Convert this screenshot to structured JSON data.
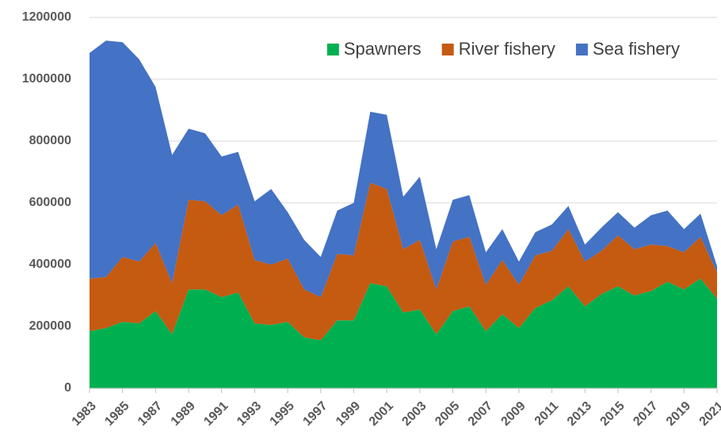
{
  "chart_data": {
    "type": "stacked-area",
    "x": [
      1983,
      1984,
      1985,
      1986,
      1987,
      1988,
      1989,
      1990,
      1991,
      1992,
      1993,
      1994,
      1995,
      1996,
      1997,
      1998,
      1999,
      2000,
      2001,
      2002,
      2003,
      2004,
      2005,
      2006,
      2007,
      2008,
      2009,
      2010,
      2011,
      2012,
      2013,
      2014,
      2015,
      2016,
      2017,
      2018,
      2019,
      2020,
      2021
    ],
    "xlim": [
      1983,
      2021
    ],
    "xticks": [
      1983,
      1985,
      1987,
      1989,
      1991,
      1993,
      1995,
      1997,
      1999,
      2001,
      2003,
      2005,
      2007,
      2009,
      2011,
      2013,
      2015,
      2017,
      2019,
      2021
    ],
    "ylim": [
      0,
      1200000
    ],
    "yticks": [
      0,
      200000,
      400000,
      600000,
      800000,
      1000000,
      1200000
    ],
    "grid": true,
    "legend": "top-right",
    "series": [
      {
        "name": "Spawners",
        "color": "#00b050",
        "values": [
          185000,
          195000,
          215000,
          210000,
          250000,
          175000,
          320000,
          320000,
          295000,
          310000,
          210000,
          205000,
          215000,
          165000,
          155000,
          220000,
          220000,
          340000,
          330000,
          245000,
          255000,
          175000,
          250000,
          265000,
          185000,
          240000,
          195000,
          260000,
          285000,
          330000,
          265000,
          305000,
          330000,
          300000,
          315000,
          345000,
          320000,
          355000,
          290000
        ]
      },
      {
        "name": "River fishery",
        "color": "#c55a11",
        "values": [
          170000,
          165000,
          210000,
          200000,
          220000,
          165000,
          290000,
          285000,
          265000,
          285000,
          205000,
          195000,
          205000,
          155000,
          140000,
          215000,
          210000,
          325000,
          315000,
          205000,
          225000,
          145000,
          225000,
          225000,
          150000,
          175000,
          140000,
          170000,
          160000,
          185000,
          145000,
          140000,
          165000,
          150000,
          150000,
          115000,
          120000,
          135000,
          85000
        ]
      },
      {
        "name": "Sea fishery",
        "color": "#4472c4",
        "values": [
          730000,
          765000,
          695000,
          655000,
          505000,
          415000,
          230000,
          220000,
          190000,
          170000,
          190000,
          245000,
          150000,
          160000,
          130000,
          140000,
          170000,
          230000,
          240000,
          170000,
          205000,
          130000,
          135000,
          135000,
          105000,
          100000,
          75000,
          75000,
          85000,
          75000,
          55000,
          75000,
          75000,
          70000,
          95000,
          115000,
          75000,
          75000,
          20000
        ]
      }
    ]
  }
}
